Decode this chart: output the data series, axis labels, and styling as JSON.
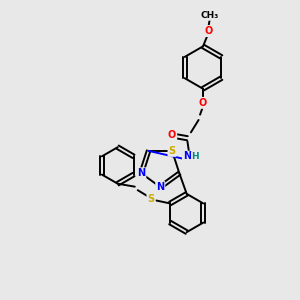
{
  "background_color": "#e8e8e8",
  "bond_color": "#000000",
  "atom_colors": {
    "N": "#0000ff",
    "O": "#ff0000",
    "S": "#ccaa00",
    "H": "#008888",
    "C": "#000000"
  },
  "figsize": [
    3.0,
    3.0
  ],
  "dpi": 100,
  "lw": 1.4,
  "fs": 7.0
}
